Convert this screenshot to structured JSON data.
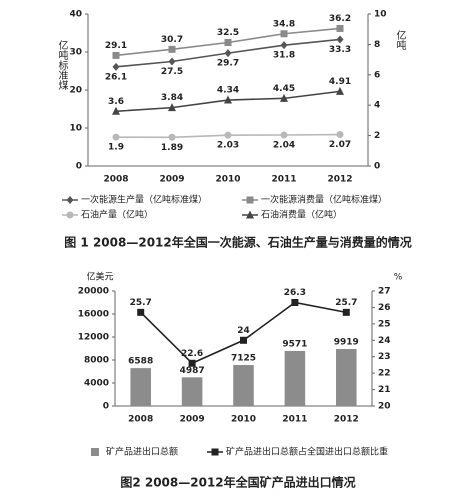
{
  "chart_data": [
    {
      "type": "line",
      "caption": "图 1 2008—2012年全国一次能源、石油生产量与消费量的情况",
      "y_label": "亿吨标准煤",
      "y2_label": "亿吨",
      "categories": [
        "2008",
        "2009",
        "2010",
        "2011",
        "2012"
      ],
      "ylim": [
        0,
        40
      ],
      "yticks": [
        0,
        10,
        20,
        30,
        40
      ],
      "y2lim": [
        0,
        10
      ],
      "y2ticks": [
        0,
        2,
        4,
        6,
        8,
        10
      ],
      "series": [
        {
          "name": "一次能源生产量（亿吨标准煤）",
          "color": "#555555",
          "marker": "diamond",
          "label_position": "below",
          "values": [
            26.1,
            27.5,
            29.7,
            31.8,
            33.3
          ]
        },
        {
          "name": "一次能源消费量（亿吨标准煤）",
          "color": "#8a8a8a",
          "marker": "square",
          "label_position": "above",
          "values": [
            29.1,
            30.7,
            32.5,
            34.8,
            36.2
          ]
        },
        {
          "name": "石油产量（亿吨）",
          "color": "#b8b8b8",
          "marker": "circle",
          "label_position": "below",
          "axis": "y2",
          "values": [
            1.9,
            1.89,
            2.03,
            2.04,
            2.07
          ]
        },
        {
          "name": "石油消费量（亿吨）",
          "color": "#444444",
          "marker": "triangle",
          "label_position": "above",
          "axis": "y2",
          "values": [
            3.6,
            3.84,
            4.34,
            4.45,
            4.91
          ]
        }
      ]
    },
    {
      "type": "bar",
      "caption": "图2 2008—2012年全国矿产品进出口情况",
      "y_label": "亿美元",
      "y2_label": "%",
      "categories": [
        "2008",
        "2009",
        "2010",
        "2011",
        "2012"
      ],
      "ylim": [
        0,
        20000
      ],
      "yticks": [
        0,
        4000,
        8000,
        12000,
        16000,
        20000
      ],
      "y2lim": [
        20,
        27
      ],
      "y2ticks": [
        20,
        21,
        22,
        23,
        24,
        25,
        26,
        27
      ],
      "series": [
        {
          "name": "矿产品进出口总额",
          "type": "bar",
          "color": "#8c8c8c",
          "label_position": "above",
          "values": [
            6588,
            4987,
            7125,
            9571,
            9919
          ]
        },
        {
          "name": "矿产品进出口总额占全国进出口总额比重",
          "type": "line",
          "color": "#222222",
          "marker": "square",
          "label_position": "above",
          "axis": "y2",
          "values": [
            25.7,
            22.6,
            24,
            26.3,
            25.7
          ]
        }
      ]
    }
  ]
}
